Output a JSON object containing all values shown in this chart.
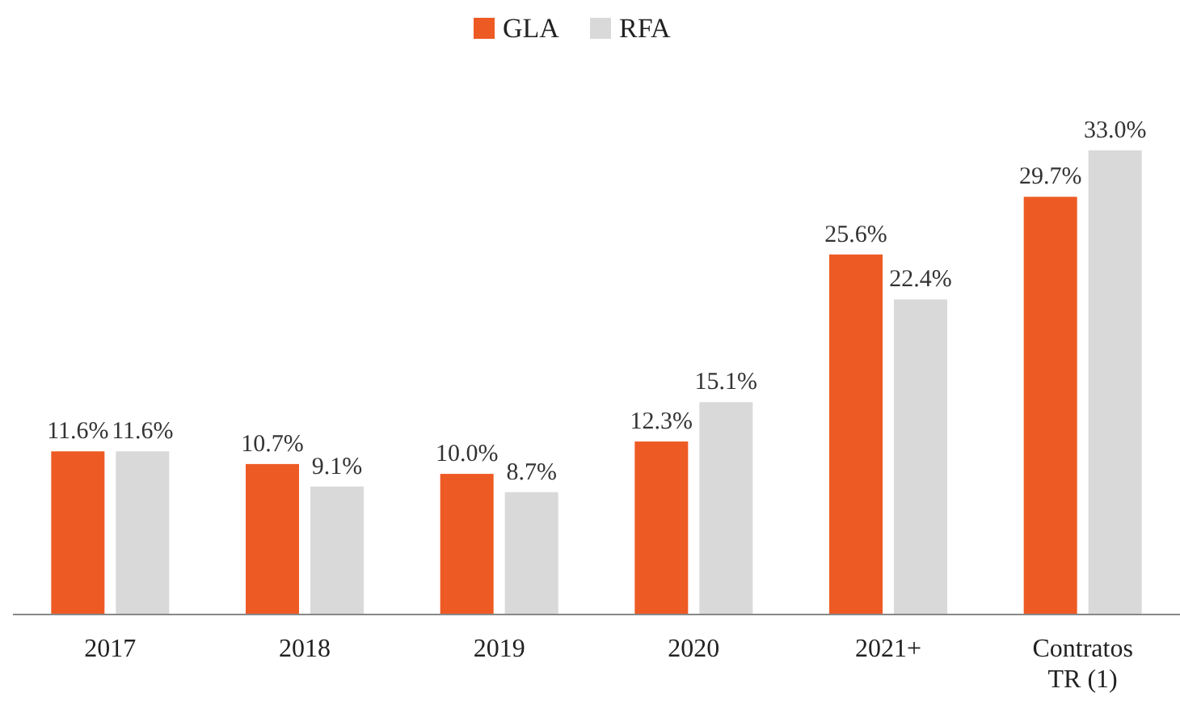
{
  "chart_data": {
    "type": "bar",
    "categories": [
      "2017",
      "2018",
      "2019",
      "2020",
      "2021+",
      "Contratos TR (1)"
    ],
    "series": [
      {
        "name": "GLA",
        "color": "#ee5a24",
        "values": [
          11.6,
          10.7,
          10.0,
          12.3,
          25.6,
          29.7
        ],
        "value_labels": [
          "11.6%",
          "10.7%",
          "10.0%",
          "12.3%",
          "25.6%",
          "29.7%"
        ]
      },
      {
        "name": "RFA",
        "color": "#d9d9d9",
        "values": [
          11.6,
          9.1,
          8.7,
          15.1,
          22.4,
          33.0
        ],
        "value_labels": [
          "11.6%",
          "9.1%",
          "8.7%",
          "15.1%",
          "22.4%",
          "33.0%"
        ]
      }
    ],
    "legend": "top"
  }
}
